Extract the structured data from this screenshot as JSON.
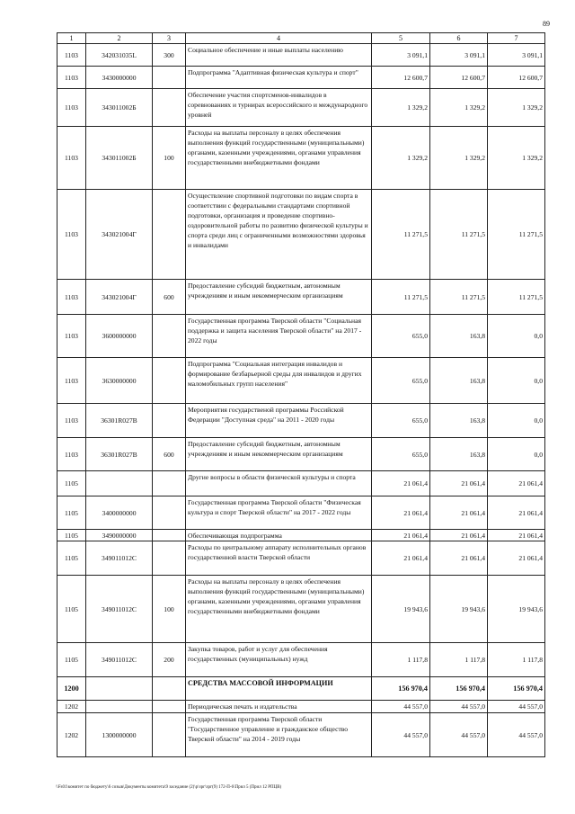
{
  "page_number": "89",
  "columns": [
    "1",
    "2",
    "3",
    "4",
    "5",
    "6",
    "7"
  ],
  "rows": [
    {
      "c1": "1103",
      "c2": "342031035L",
      "c3": "300",
      "c4": "Социальное обеспечение и иные выплаты населению",
      "c5": "3 091,1",
      "c6": "3 091,1",
      "c7": "3 091,1"
    },
    {
      "c1": "1103",
      "c2": "3430000000",
      "c3": "",
      "c4": "Подпрограмма \"Адаптивная физическая культура и спорт\"",
      "c5": "12 600,7",
      "c6": "12 600,7",
      "c7": "12 600,7"
    },
    {
      "c1": "1103",
      "c2": "343011002Б",
      "c3": "",
      "c4": "Обеспечение участия спортсменов-инвалидов в соревнованиях и турнирах всероссийского и международного уровней",
      "c5": "1 329,2",
      "c6": "1 329,2",
      "c7": "1 329,2"
    },
    {
      "c1": "1103",
      "c2": "343011002Б",
      "c3": "100",
      "c4": "Расходы на выплаты персоналу в целях обеспечения выполнения функций государственными (муниципальными) органами, казенными учреждениями, органами управления государственными внебюджетными фондами",
      "c5": "1 329,2",
      "c6": "1 329,2",
      "c7": "1 329,2"
    },
    {
      "c1": "1103",
      "c2": "343021004Г",
      "c3": "",
      "c4": "Осуществление спортивной подготовки по видам спорта в соответствии с федеральными стандартами спортивной подготовки, организация и проведение спортивно-оздоровительной работы по развитию физической культуры и спорта среди лиц с ограниченными возможностями здоровья и инвалидами",
      "c5": "11 271,5",
      "c6": "11 271,5",
      "c7": "11 271,5"
    },
    {
      "c1": "1103",
      "c2": "343021004Г",
      "c3": "600",
      "c4": "Предоставление субсидий бюджетным, автономным учреждениям и иным некоммерческим организациям",
      "c5": "11 271,5",
      "c6": "11 271,5",
      "c7": "11 271,5"
    },
    {
      "c1": "1103",
      "c2": "3600000000",
      "c3": "",
      "c4": "Государственная программа Тверской области \"Социальная поддержка и защита населения Тверской области\" на 2017 - 2022 годы",
      "c5": "655,0",
      "c6": "163,8",
      "c7": "0,0"
    },
    {
      "c1": "1103",
      "c2": "3630000000",
      "c3": "",
      "c4": "Подпрограмма \"Социальная интеграция инвалидов и формирование безбарьерной среды для инвалидов и других маломобильных групп населения\"",
      "c5": "655,0",
      "c6": "163,8",
      "c7": "0,0"
    },
    {
      "c1": "1103",
      "c2": "36301R027В",
      "c3": "",
      "c4": "Мероприятия государственой программы Российской Федерации \"Доступная среда\" на 2011 - 2020 годы",
      "c5": "655,0",
      "c6": "163,8",
      "c7": "0,0"
    },
    {
      "c1": "1103",
      "c2": "36301R027В",
      "c3": "600",
      "c4": "Предоставление субсидий бюджетным, автономным учреждениям и иным некоммерческим организациям",
      "c5": "655,0",
      "c6": "163,8",
      "c7": "0,0"
    },
    {
      "c1": "1105",
      "c2": "",
      "c3": "",
      "c4": "Другие вопросы в области физической культуры и спорта",
      "c5": "21 061,4",
      "c6": "21 061,4",
      "c7": "21 061,4"
    },
    {
      "c1": "1105",
      "c2": "3400000000",
      "c3": "",
      "c4": "Государственная программа Тверской области \"Физическая культура и спорт Тверской области\" на 2017 - 2022 годы",
      "c5": "21 061,4",
      "c6": "21 061,4",
      "c7": "21 061,4"
    },
    {
      "c1": "1105",
      "c2": "3490000000",
      "c3": "",
      "c4": "Обеспечивающая подпрограмма",
      "c5": "21 061,4",
      "c6": "21 061,4",
      "c7": "21 061,4"
    },
    {
      "c1": "1105",
      "c2": "349011012С",
      "c3": "",
      "c4": "Расходы по центральному аппарату исполнительных органов государственной власти Тверской области",
      "c5": "21 061,4",
      "c6": "21 061,4",
      "c7": "21 061,4"
    },
    {
      "c1": "1105",
      "c2": "349011012С",
      "c3": "100",
      "c4": "Расходы на выплаты персоналу в целях обеспечения выполнения функций государственными (муниципальными) органами, казенными учреждениями, органами управления государственными внебюджетными фондами",
      "c5": "19 943,6",
      "c6": "19 943,6",
      "c7": "19 943,6"
    },
    {
      "c1": "1105",
      "c2": "349011012С",
      "c3": "200",
      "c4": "Закупка товаров, работ и услуг для обеспечения государственных (муниципальных) нужд",
      "c5": "1 117,8",
      "c6": "1 117,8",
      "c7": "1 117,8"
    },
    {
      "c1": "1200",
      "c2": "",
      "c3": "",
      "c4": "СРЕДСТВА МАССОВОЙ ИНФОРМАЦИИ",
      "c5": "156 970,4",
      "c6": "156 970,4",
      "c7": "156 970,4"
    },
    {
      "c1": "1202",
      "c2": "",
      "c3": "",
      "c4": "Периодическая печать и издательства",
      "c5": "44 557,0",
      "c6": "44 557,0",
      "c7": "44 557,0"
    },
    {
      "c1": "1202",
      "c2": "1300000000",
      "c3": "",
      "c4": "Государственная программа Тверской области \"Государственное управление и гражданское общество Тверской области\" на 2014 - 2019 годы",
      "c5": "44 557,0",
      "c6": "44 557,0",
      "c7": "44 557,0"
    }
  ],
  "footer_path": "\\\\Fs01\\комитет по бюджету\\6 созыв\\Документы комитета\\9 заседание (2)\\р\\зрг\\зрг(9) 172-П-6\\Прил 5 (Прил 12 РПЦВ)"
}
